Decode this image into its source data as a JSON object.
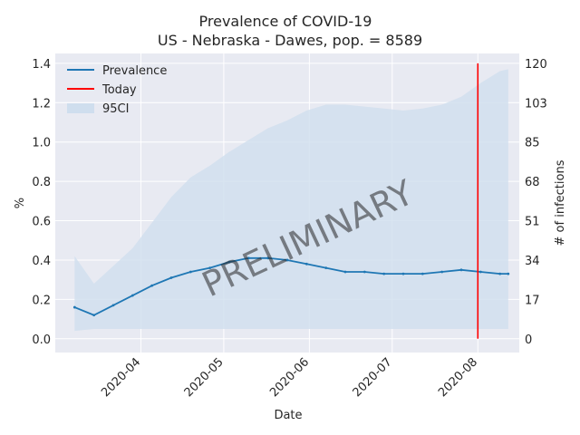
{
  "chart_data": {
    "type": "line",
    "title": "Prevalence of COVID-19",
    "subtitle": "US - Nebraska - Dawes, pop. = 8589",
    "xlabel": "Date",
    "ylabel": "%",
    "y2label": "# of infections",
    "watermark": "PRELIMINARY",
    "x_range": [
      "2020-03-01",
      "2020-08-16"
    ],
    "ylim": [
      -0.07,
      1.45
    ],
    "y_ticks": [
      "0.0",
      "0.2",
      "0.4",
      "0.6",
      "0.8",
      "1.0",
      "1.2",
      "1.4"
    ],
    "y2_ticks": [
      "0",
      "17",
      "34",
      "51",
      "68",
      "85",
      "103",
      "120"
    ],
    "x_ticks": [
      "2020-04",
      "2020-05",
      "2020-06",
      "2020-07",
      "2020-08"
    ],
    "grid": true,
    "legend_position": "top-left",
    "legend": [
      "Prevalence",
      "Today",
      "95CI"
    ],
    "today": "2020-08-01",
    "colors": {
      "prevalence": "#1f77b4",
      "today": "#ff0000",
      "ci": "#cfdeee",
      "background": "#e8eaf2"
    },
    "dates": [
      "2020-03-08",
      "2020-03-15",
      "2020-03-22",
      "2020-03-29",
      "2020-04-05",
      "2020-04-12",
      "2020-04-19",
      "2020-04-26",
      "2020-05-03",
      "2020-05-10",
      "2020-05-17",
      "2020-05-24",
      "2020-05-31",
      "2020-06-07",
      "2020-06-14",
      "2020-06-21",
      "2020-06-28",
      "2020-07-05",
      "2020-07-12",
      "2020-07-19",
      "2020-07-26",
      "2020-08-02",
      "2020-08-09",
      "2020-08-12"
    ],
    "prevalence": [
      0.16,
      0.12,
      0.17,
      0.22,
      0.27,
      0.31,
      0.34,
      0.36,
      0.39,
      0.41,
      0.41,
      0.4,
      0.38,
      0.36,
      0.34,
      0.34,
      0.33,
      0.33,
      0.33,
      0.34,
      0.35,
      0.34,
      0.33,
      0.33
    ],
    "ci_lower": [
      0.04,
      0.05,
      0.05,
      0.05,
      0.05,
      0.05,
      0.05,
      0.05,
      0.05,
      0.05,
      0.05,
      0.05,
      0.05,
      0.05,
      0.05,
      0.05,
      0.05,
      0.05,
      0.05,
      0.05,
      0.05,
      0.05,
      0.05,
      0.05
    ],
    "ci_upper": [
      0.42,
      0.28,
      0.37,
      0.46,
      0.59,
      0.72,
      0.82,
      0.88,
      0.95,
      1.01,
      1.07,
      1.11,
      1.16,
      1.19,
      1.19,
      1.18,
      1.17,
      1.16,
      1.17,
      1.19,
      1.23,
      1.3,
      1.36,
      1.37
    ]
  }
}
